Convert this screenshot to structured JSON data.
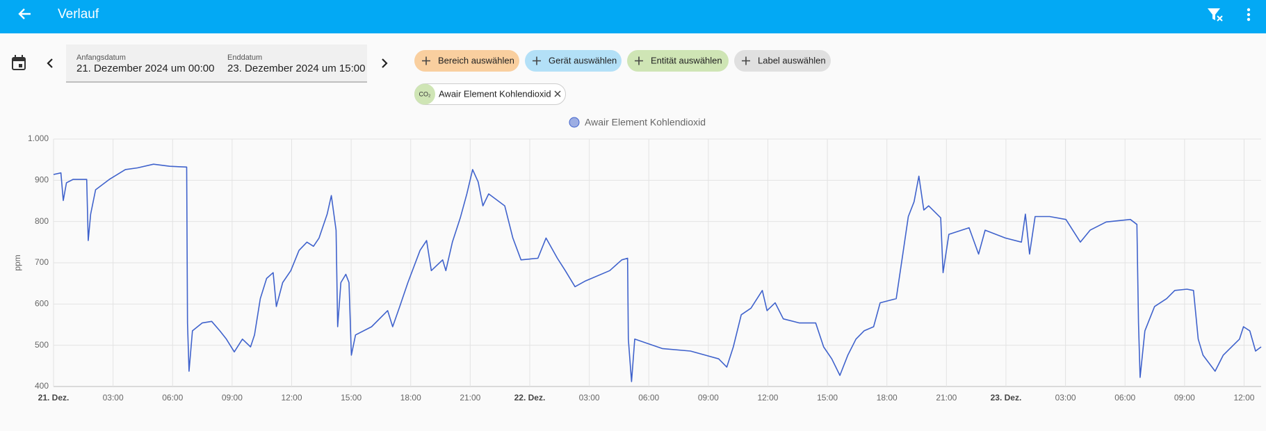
{
  "header": {
    "title": "Verlauf"
  },
  "date_picker": {
    "start_label": "Anfangsdatum",
    "start_value": "21. Dezember 2024 um 00:00",
    "end_label": "Enddatum",
    "end_value": "23. Dezember 2024 um 15:00"
  },
  "chips": [
    "Bereich auswählen",
    "Gerät auswählen",
    "Entität auswählen",
    "Label auswählen"
  ],
  "selected_entity": {
    "icon_label": "CO₂",
    "name": "Awair Element Kohlendioxid"
  },
  "chart_data": {
    "type": "line",
    "ylabel": "ppm",
    "xlim": [
      0,
      60.86
    ],
    "ylim": [
      400,
      1000
    ],
    "xticks": [
      {
        "value": 0,
        "label": "21. Dez."
      },
      {
        "value": 3,
        "label": "03:00"
      },
      {
        "value": 6,
        "label": "06:00"
      },
      {
        "value": 9,
        "label": "09:00"
      },
      {
        "value": 12,
        "label": "12:00"
      },
      {
        "value": 15,
        "label": "15:00"
      },
      {
        "value": 18,
        "label": "18:00"
      },
      {
        "value": 21,
        "label": "21:00"
      },
      {
        "value": 24,
        "label": "22. Dez."
      },
      {
        "value": 27,
        "label": "03:00"
      },
      {
        "value": 30,
        "label": "06:00"
      },
      {
        "value": 33,
        "label": "09:00"
      },
      {
        "value": 36,
        "label": "12:00"
      },
      {
        "value": 39,
        "label": "15:00"
      },
      {
        "value": 42,
        "label": "18:00"
      },
      {
        "value": 45,
        "label": "21:00"
      },
      {
        "value": 48,
        "label": "23. Dez."
      },
      {
        "value": 51,
        "label": "03:00"
      },
      {
        "value": 54,
        "label": "06:00"
      },
      {
        "value": 57,
        "label": "09:00"
      },
      {
        "value": 60,
        "label": "12:00"
      }
    ],
    "yticks": [
      400,
      500,
      600,
      700,
      800,
      900,
      {
        "value": 1000,
        "label": "1.000"
      }
    ],
    "grid": true,
    "legend": "top",
    "x": [
      0.0,
      0.37,
      0.49,
      0.65,
      0.98,
      1.67,
      1.75,
      1.87,
      2.12,
      2.81,
      3.62,
      4.23,
      5.04,
      5.86,
      6.71,
      6.75,
      6.83,
      7.0,
      7.49,
      7.97,
      8.38,
      8.71,
      9.11,
      9.52,
      9.93,
      10.13,
      10.42,
      10.74,
      11.07,
      11.23,
      11.55,
      11.96,
      12.37,
      12.77,
      13.1,
      13.38,
      13.79,
      14.0,
      14.24,
      14.32,
      14.48,
      14.73,
      14.89,
      15.01,
      15.22,
      16.03,
      16.84,
      17.09,
      17.45,
      17.86,
      18.47,
      18.8,
      19.04,
      19.61,
      19.77,
      20.1,
      20.5,
      20.83,
      21.12,
      21.4,
      21.64,
      21.93,
      22.74,
      23.15,
      23.56,
      24.41,
      24.82,
      25.39,
      25.79,
      26.28,
      26.81,
      28.03,
      28.64,
      28.93,
      28.97,
      29.13,
      29.29,
      30.68,
      32.1,
      33.52,
      33.93,
      34.26,
      34.66,
      35.15,
      35.72,
      35.96,
      36.37,
      36.78,
      37.59,
      38.41,
      38.81,
      39.22,
      39.63,
      40.03,
      40.44,
      40.85,
      41.33,
      41.66,
      42.47,
      42.8,
      43.08,
      43.37,
      43.61,
      43.86,
      44.1,
      44.71,
      44.83,
      45.12,
      46.14,
      46.62,
      46.95,
      47.97,
      48.78,
      48.98,
      49.19,
      49.47,
      50.2,
      51.02,
      51.75,
      52.24,
      53.05,
      54.27,
      54.6,
      54.68,
      54.76,
      55.0,
      55.49,
      56.1,
      56.51,
      57.12,
      57.45,
      57.69,
      57.93,
      58.54,
      58.95,
      59.77,
      59.97,
      60.29,
      60.58,
      60.86
    ],
    "series": [
      {
        "name": "Awair Element Kohlendioxid",
        "color": "#3f62cc",
        "values": [
          914,
          918,
          851,
          894,
          902,
          902,
          754,
          818,
          877,
          902,
          926,
          930,
          939,
          934,
          932,
          554,
          437,
          535,
          554,
          558,
          535,
          515,
          484,
          515,
          496,
          525,
          613,
          662,
          676,
          594,
          652,
          681,
          730,
          750,
          740,
          760,
          818,
          863,
          779,
          545,
          652,
          672,
          652,
          476,
          525,
          545,
          584,
          545,
          594,
          652,
          730,
          754,
          681,
          707,
          681,
          750,
          809,
          867,
          926,
          896,
          838,
          867,
          838,
          760,
          707,
          711,
          760,
          711,
          681,
          642,
          656,
          681,
          707,
          711,
          515,
          412,
          515,
          492,
          486,
          467,
          447,
          496,
          574,
          590,
          633,
          584,
          603,
          564,
          554,
          554,
          496,
          467,
          427,
          476,
          515,
          535,
          545,
          603,
          613,
          721,
          812,
          848,
          910,
          828,
          838,
          809,
          676,
          769,
          785,
          721,
          779,
          760,
          750,
          818,
          721,
          812,
          812,
          805,
          750,
          779,
          799,
          805,
          793,
          554,
          422,
          535,
          594,
          613,
          633,
          636,
          633,
          515,
          476,
          437,
          476,
          515,
          545,
          535,
          486,
          496
        ]
      }
    ]
  }
}
